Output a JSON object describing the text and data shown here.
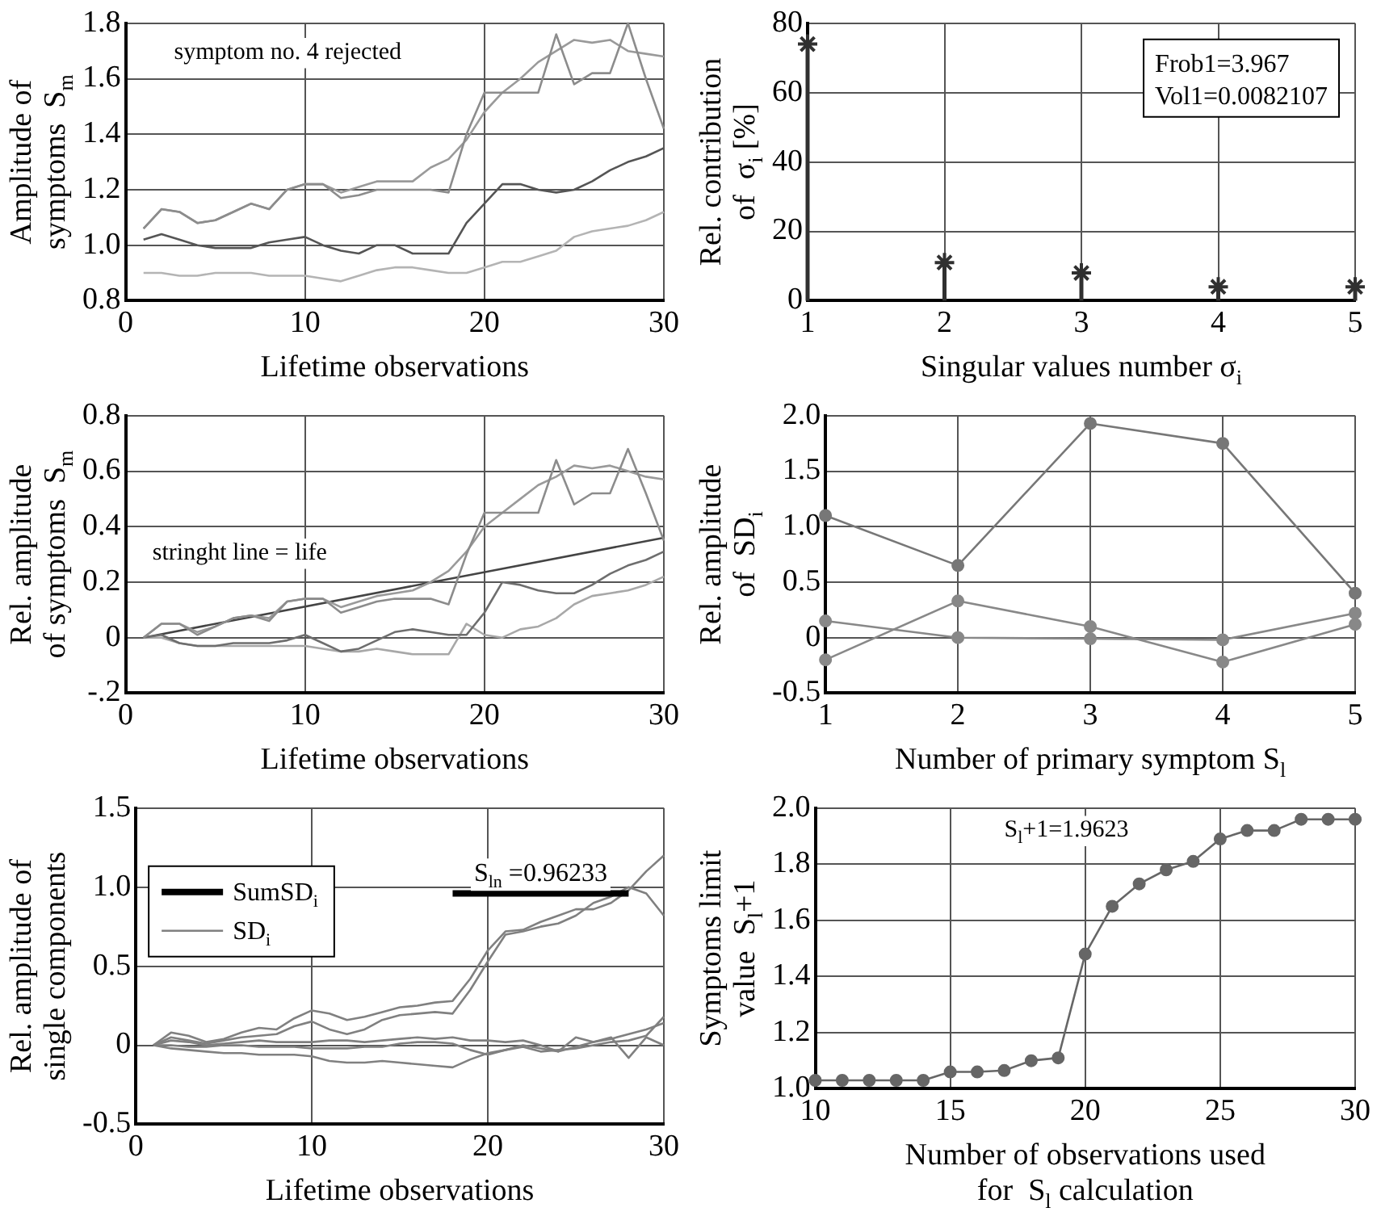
{
  "chart_data": [
    {
      "type": "line",
      "xlabel": "Lifetime observations",
      "ylabel": "Amplitude of\nsymptoms  S$_{m}$",
      "annotations": [
        "symptom no. 4 rejected"
      ],
      "x": [
        1,
        2,
        3,
        4,
        5,
        6,
        7,
        8,
        9,
        10,
        11,
        12,
        13,
        14,
        15,
        16,
        17,
        18,
        19,
        20,
        21,
        22,
        23,
        24,
        25,
        26,
        27,
        28,
        29,
        30
      ],
      "series": [
        {
          "color": "#8c8c8c",
          "values": [
            1.06,
            1.13,
            1.12,
            1.08,
            1.09,
            1.12,
            1.15,
            1.13,
            1.2,
            1.22,
            1.22,
            1.17,
            1.18,
            1.2,
            1.2,
            1.2,
            1.2,
            1.19,
            1.4,
            1.55,
            1.55,
            1.55,
            1.55,
            1.76,
            1.58,
            1.62,
            1.62,
            1.8,
            1.6,
            1.42
          ]
        },
        {
          "color": "#9a9a9a",
          "values": [
            1.06,
            1.13,
            1.12,
            1.08,
            1.09,
            1.12,
            1.15,
            1.13,
            1.2,
            1.22,
            1.22,
            1.19,
            1.21,
            1.23,
            1.23,
            1.23,
            1.28,
            1.31,
            1.38,
            1.48,
            1.55,
            1.6,
            1.66,
            1.7,
            1.74,
            1.73,
            1.74,
            1.7,
            1.69,
            1.68
          ]
        },
        {
          "color": "#555555",
          "values": [
            1.02,
            1.04,
            1.02,
            1.0,
            0.99,
            0.99,
            0.99,
            1.01,
            1.02,
            1.03,
            1.0,
            0.98,
            0.97,
            1.0,
            1.0,
            0.97,
            0.97,
            0.97,
            1.08,
            1.15,
            1.22,
            1.22,
            1.2,
            1.19,
            1.2,
            1.23,
            1.27,
            1.3,
            1.32,
            1.35
          ]
        },
        {
          "color": "#b4b4b4",
          "values": [
            0.9,
            0.9,
            0.89,
            0.89,
            0.9,
            0.9,
            0.9,
            0.89,
            0.89,
            0.89,
            0.88,
            0.87,
            0.89,
            0.91,
            0.92,
            0.92,
            0.91,
            0.9,
            0.9,
            0.92,
            0.94,
            0.94,
            0.96,
            0.98,
            1.03,
            1.05,
            1.06,
            1.07,
            1.09,
            1.12
          ]
        }
      ],
      "xlim": [
        0,
        30
      ],
      "xticks": [
        0,
        10,
        20,
        30
      ],
      "ylim": [
        0.8,
        1.8
      ],
      "yticks": [
        {
          "value": 0.8,
          "label": "0.8"
        },
        {
          "value": 1.0,
          "label": "1.0"
        },
        {
          "value": 1.2,
          "label": "1.2"
        },
        {
          "value": 1.4,
          "label": "1.4"
        },
        {
          "value": 1.6,
          "label": "1.6"
        },
        {
          "value": 1.8,
          "label": "1.8"
        }
      ],
      "grid": true
    },
    {
      "type": "lollipop",
      "xlabel": "Singular values number σ$_{i}$",
      "ylabel": "Rel. contribution\nof  σ$_{i}$ [%]",
      "annotations": [
        "Frob1=3.967",
        "Vol1=0.0082107"
      ],
      "x": [
        1,
        2,
        3,
        4,
        5
      ],
      "series": [
        {
          "color": "#303030",
          "values": [
            74,
            11,
            8,
            4,
            4
          ]
        }
      ],
      "xlim": [
        1,
        5
      ],
      "xticks": [
        1,
        2,
        3,
        4,
        5
      ],
      "ylim": [
        0,
        80
      ],
      "yticks": [
        0,
        20,
        40,
        60,
        80
      ],
      "marker": "cross",
      "grid": true
    },
    {
      "type": "line",
      "xlabel": "Lifetime observations",
      "ylabel": "Rel. amplitude\nof symptoms  S$_{m}$",
      "annotations": [
        "stringht line = life"
      ],
      "x": [
        1,
        2,
        3,
        4,
        5,
        6,
        7,
        8,
        9,
        10,
        11,
        12,
        13,
        14,
        15,
        16,
        17,
        18,
        19,
        20,
        21,
        22,
        23,
        24,
        25,
        26,
        27,
        28,
        29,
        30
      ],
      "series": [
        {
          "color": "#8c8c8c",
          "values": [
            0,
            0.05,
            0.05,
            0.01,
            0.04,
            0.07,
            0.08,
            0.06,
            0.13,
            0.14,
            0.14,
            0.09,
            0.11,
            0.13,
            0.14,
            0.14,
            0.14,
            0.12,
            0.3,
            0.45,
            0.45,
            0.45,
            0.45,
            0.64,
            0.48,
            0.52,
            0.52,
            0.68,
            0.52,
            0.35
          ]
        },
        {
          "color": "#9a9a9a",
          "values": [
            0,
            0.05,
            0.05,
            0.02,
            0.04,
            0.07,
            0.08,
            0.07,
            0.13,
            0.14,
            0.14,
            0.11,
            0.13,
            0.15,
            0.16,
            0.17,
            0.2,
            0.24,
            0.31,
            0.4,
            0.45,
            0.5,
            0.55,
            0.58,
            0.62,
            0.61,
            0.62,
            0.6,
            0.58,
            0.57
          ]
        },
        {
          "color": "#6e6e6e",
          "values": [
            0,
            0.01,
            -0.02,
            -0.03,
            -0.03,
            -0.02,
            -0.02,
            -0.02,
            -0.01,
            0.01,
            -0.02,
            -0.05,
            -0.04,
            -0.01,
            0.02,
            0.03,
            0.02,
            0.01,
            0.01,
            0.09,
            0.2,
            0.19,
            0.17,
            0.16,
            0.16,
            0.19,
            0.23,
            0.26,
            0.28,
            0.31
          ]
        },
        {
          "color": "#a8a8a8",
          "values": [
            0,
            0,
            -0.02,
            -0.03,
            -0.03,
            -0.03,
            -0.03,
            -0.03,
            -0.03,
            -0.03,
            -0.04,
            -0.05,
            -0.05,
            -0.04,
            -0.05,
            -0.06,
            -0.06,
            -0.06,
            0.05,
            0.01,
            0,
            0.03,
            0.04,
            0.07,
            0.12,
            0.15,
            0.16,
            0.17,
            0.19,
            0.22
          ]
        },
        {
          "type": "line",
          "color": "#444444",
          "x": [
            1,
            30
          ],
          "values": [
            0,
            0.36
          ]
        }
      ],
      "xlim": [
        0,
        30
      ],
      "xticks": [
        0,
        10,
        20,
        30
      ],
      "ylim": [
        -0.2,
        0.8
      ],
      "yticks": [
        {
          "value": -0.2,
          "label": "-.2"
        },
        0,
        0.2,
        0.4,
        0.6,
        0.8
      ],
      "grid": true
    },
    {
      "type": "line",
      "xlabel": "Number of primary symptom S$_{l}$",
      "ylabel": "Rel. amplitude\nof  SD$_{i}$",
      "x": [
        1,
        2,
        3,
        4,
        5
      ],
      "series": [
        {
          "color": "#777777",
          "values": [
            1.1,
            0.65,
            1.93,
            1.75,
            0.4
          ]
        },
        {
          "color": "#888888",
          "values": [
            -0.2,
            0.33,
            0.1,
            -0.22,
            0.12
          ]
        },
        {
          "color": "#888888",
          "values": [
            0.15,
            0.0,
            -0.01,
            -0.02,
            0.22
          ]
        }
      ],
      "xlim": [
        1,
        5
      ],
      "xticks": [
        1,
        2,
        3,
        4,
        5
      ],
      "ylim": [
        -0.5,
        2.0
      ],
      "yticks": [
        -0.5,
        0,
        0.5,
        {
          "value": 1.0,
          "label": "1.0"
        },
        1.5,
        {
          "value": 2.0,
          "label": "2.0"
        }
      ],
      "marker": "circle",
      "grid": true
    },
    {
      "type": "line",
      "xlabel": "Lifetime observations",
      "ylabel": "Rel. amplitude of\nsingle components",
      "annotations": [
        {
          "text": "S$_{ln}$ =0.96233",
          "x": 23,
          "y": 0.96
        }
      ],
      "x": [
        1,
        2,
        3,
        4,
        5,
        6,
        7,
        8,
        9,
        10,
        11,
        12,
        13,
        14,
        15,
        16,
        17,
        18,
        19,
        20,
        21,
        22,
        23,
        24,
        25,
        26,
        27,
        28,
        29,
        30
      ],
      "series": [
        {
          "name": "SumSD$_{i}$",
          "color": "#000000",
          "x": [
            18,
            28
          ],
          "values": [
            0.96,
            0.96
          ]
        },
        {
          "name": "SD$_{i}$",
          "color": "#808080",
          "values": [
            0,
            0.08,
            0.06,
            0.02,
            0.04,
            0.08,
            0.11,
            0.1,
            0.17,
            0.22,
            0.2,
            0.16,
            0.18,
            0.21,
            0.24,
            0.25,
            0.27,
            0.28,
            0.42,
            0.6,
            0.72,
            0.73,
            0.78,
            0.82,
            0.86,
            0.86,
            0.9,
            0.98,
            1.1,
            1.2
          ]
        },
        {
          "color": "#808080",
          "values": [
            0,
            0.05,
            0.03,
            0.01,
            0.03,
            0.05,
            0.06,
            0.07,
            0.12,
            0.15,
            0.1,
            0.07,
            0.1,
            0.16,
            0.19,
            0.2,
            0.21,
            0.2,
            0.35,
            0.53,
            0.7,
            0.72,
            0.75,
            0.77,
            0.82,
            0.9,
            0.94,
            1.0,
            0.96,
            0.82
          ]
        },
        {
          "color": "#808080",
          "values": [
            0,
            -0.02,
            -0.03,
            -0.04,
            -0.05,
            -0.05,
            -0.06,
            -0.06,
            -0.06,
            -0.07,
            -0.1,
            -0.11,
            -0.11,
            -0.1,
            -0.11,
            -0.12,
            -0.13,
            -0.14,
            -0.09,
            -0.05,
            -0.03,
            0,
            -0.02,
            -0.04,
            -0.01,
            0.02,
            0.04,
            0.07,
            0.1,
            0.14
          ]
        },
        {
          "color": "#808080",
          "values": [
            0,
            0.03,
            0.02,
            0,
            0.01,
            0.02,
            0.03,
            0.02,
            0.02,
            0.02,
            0.03,
            0.03,
            0.02,
            0.03,
            0.04,
            0.05,
            0.04,
            0.05,
            0.03,
            0.03,
            0.02,
            0.03,
            0,
            -0.04,
            0.05,
            0.02,
            0.05,
            -0.08,
            0.05,
            0
          ]
        },
        {
          "color": "#808080",
          "values": [
            0,
            0,
            -0.01,
            -0.01,
            0,
            0,
            -0.01,
            -0.01,
            -0.01,
            -0.02,
            -0.02,
            -0.02,
            -0.01,
            -0.01,
            0.01,
            0.02,
            0.02,
            0.01,
            -0.03,
            -0.06,
            -0.03,
            -0.01,
            -0.04,
            -0.03,
            -0.02,
            0,
            0.02,
            0.03,
            0.06,
            0.18
          ]
        }
      ],
      "xlim": [
        0,
        30
      ],
      "xticks": [
        0,
        10,
        20,
        30
      ],
      "ylim": [
        -0.5,
        1.5
      ],
      "yticks": [
        -0.5,
        0,
        0.5,
        {
          "value": 1.0,
          "label": "1.0"
        },
        1.5
      ],
      "legend": "top left",
      "grid": true
    },
    {
      "type": "line",
      "xlabel": "Number of observations used\nfor  S$_{l}$ calculation",
      "ylabel": "Symptoms limit\nvalue  S$_{l}$+1",
      "annotations": [
        "S$_{l}$+1=1.9623"
      ],
      "x": [
        10,
        11,
        12,
        13,
        14,
        15,
        16,
        17,
        18,
        19,
        20,
        21,
        22,
        23,
        24,
        25,
        26,
        27,
        28,
        29,
        30
      ],
      "series": [
        {
          "color": "#666666",
          "values": [
            1.03,
            1.03,
            1.03,
            1.03,
            1.03,
            1.06,
            1.06,
            1.065,
            1.1,
            1.11,
            1.48,
            1.65,
            1.73,
            1.78,
            1.81,
            1.89,
            1.92,
            1.92,
            1.96,
            1.96,
            1.96
          ]
        }
      ],
      "xlim": [
        10,
        30
      ],
      "xticks": [
        10,
        15,
        20,
        25,
        30
      ],
      "ylim": [
        1.0,
        2.0
      ],
      "yticks": [
        {
          "value": 1.0,
          "label": "1.0"
        },
        1.2,
        1.4,
        1.6,
        1.8,
        {
          "value": 2.0,
          "label": "2.0"
        }
      ],
      "marker": "circle",
      "grid": true
    }
  ]
}
